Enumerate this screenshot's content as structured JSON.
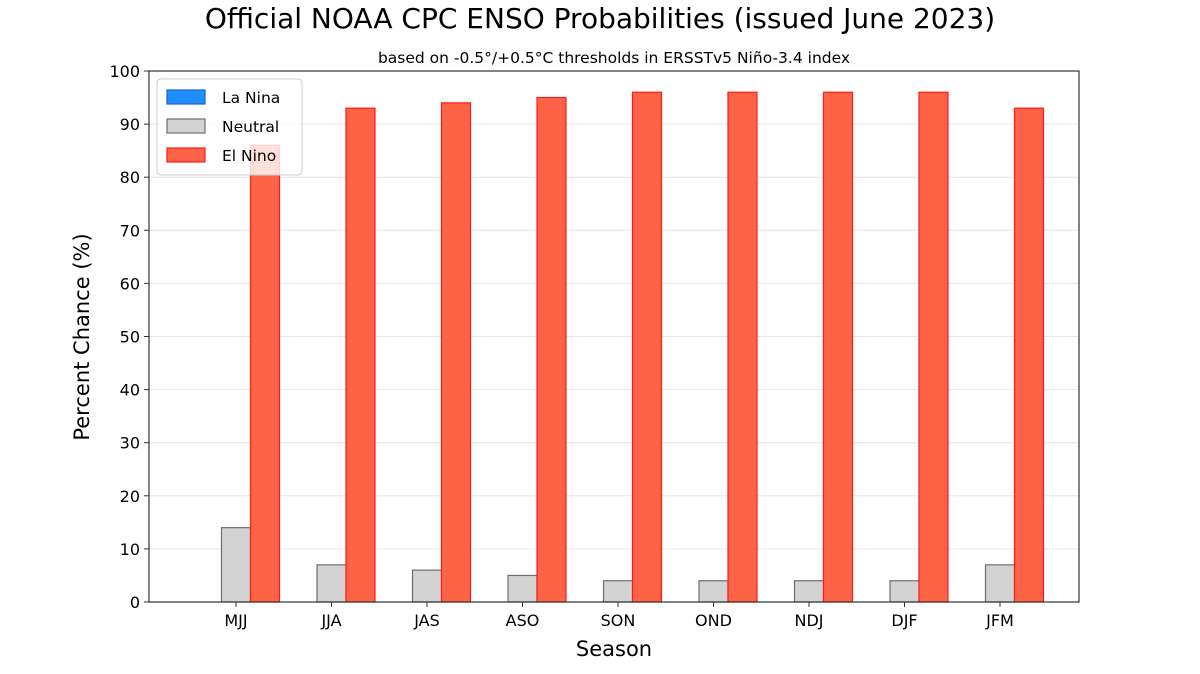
{
  "chart_data": {
    "type": "bar",
    "title": "Official NOAA CPC ENSO Probabilities (issued June 2023)",
    "subtitle": "based on -0.5°/+0.5°C thresholds in ERSSTv5 Niño-3.4 index",
    "xlabel": "Season",
    "ylabel": "Percent Chance (%)",
    "ylim": [
      0,
      100
    ],
    "yticks": [
      0,
      10,
      20,
      30,
      40,
      50,
      60,
      70,
      80,
      90,
      100
    ],
    "categories": [
      "MJJ",
      "JJA",
      "JAS",
      "ASO",
      "SON",
      "OND",
      "NDJ",
      "DJF",
      "JFM"
    ],
    "series": [
      {
        "name": "La Nina",
        "values": [
          0,
          0,
          0,
          0,
          0,
          0,
          0,
          0,
          0
        ],
        "color": "#1f8fff",
        "edge": "#1f5fd0"
      },
      {
        "name": "Neutral",
        "values": [
          14,
          7,
          6,
          5,
          4,
          4,
          4,
          4,
          7
        ],
        "color": "#d3d3d3",
        "edge": "#6e6e6e"
      },
      {
        "name": "El Nino",
        "values": [
          86,
          93,
          94,
          95,
          96,
          96,
          96,
          96,
          93
        ],
        "color": "#ff6347",
        "edge": "#ff1a1a"
      }
    ],
    "grid": true,
    "legend_position": "upper-left"
  }
}
